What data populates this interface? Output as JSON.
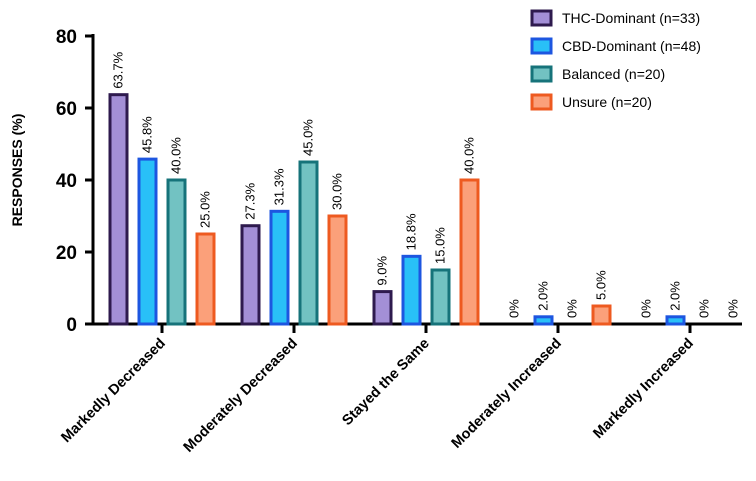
{
  "chart_data": {
    "type": "bar",
    "title": "",
    "xlabel": "",
    "ylabel": "RESPONSES (%)",
    "ylim": [
      0,
      80
    ],
    "yticks": [
      0,
      20,
      40,
      60,
      80
    ],
    "categories": [
      "Markedly Decreased",
      "Moderately Decreased",
      "Stayed the Same",
      "Moderately Increased",
      "Markedly Increased"
    ],
    "series": [
      {
        "name": "THC-Dominant (n=33)",
        "values": [
          63.7,
          27.3,
          9.0,
          0,
          0
        ],
        "labels": [
          "63.7%",
          "27.3%",
          "9.0%",
          "0%",
          "0%"
        ],
        "fill": "#a38fd6",
        "stroke": "#2e1a4e"
      },
      {
        "name": "CBD-Dominant (n=48)",
        "values": [
          45.8,
          31.3,
          18.8,
          2.0,
          2.0
        ],
        "labels": [
          "45.8%",
          "31.3%",
          "18.8%",
          "2.0%",
          "2.0%"
        ],
        "fill": "#29c0f7",
        "stroke": "#1d56e0"
      },
      {
        "name": "Balanced (n=20)",
        "values": [
          40.0,
          45.0,
          15.0,
          0,
          0
        ],
        "labels": [
          "40.0%",
          "45.0%",
          "15.0%",
          "0%",
          "0%"
        ],
        "fill": "#72c2c2",
        "stroke": "#16737a"
      },
      {
        "name": "Unsure (n=20)",
        "values": [
          25.0,
          30.0,
          40.0,
          5.0,
          0
        ],
        "labels": [
          "25.0%",
          "30.0%",
          "40.0%",
          "5.0%",
          "0%"
        ],
        "fill": "#fba07a",
        "stroke": "#ee5a20"
      }
    ],
    "legend_position": "top-right"
  }
}
